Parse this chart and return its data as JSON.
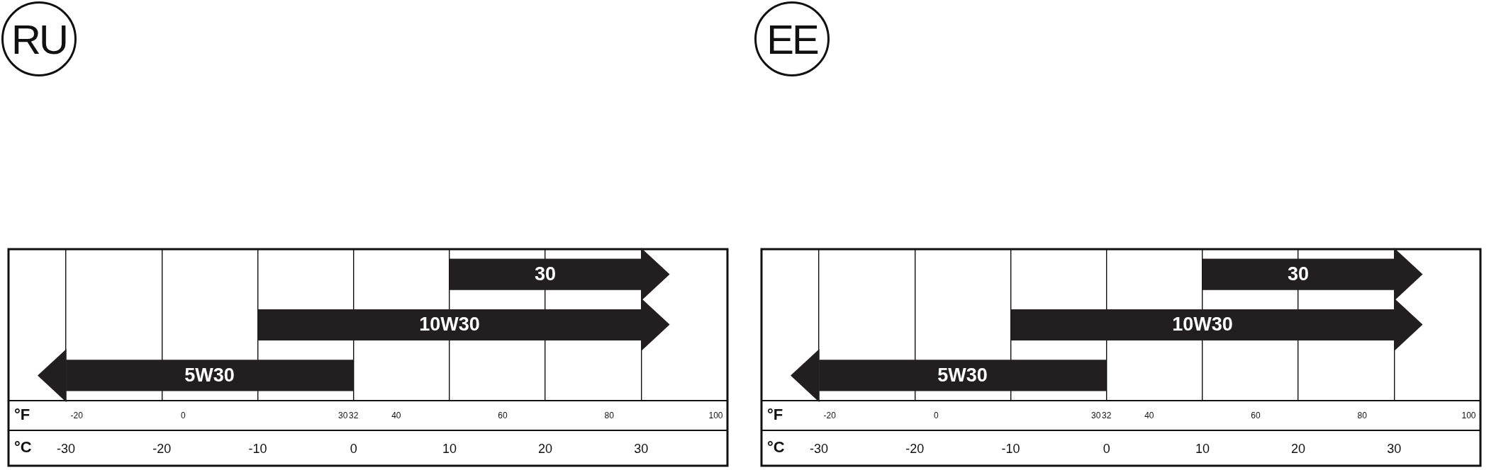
{
  "chart_data": [
    {
      "type": "bar",
      "orientation": "horizontal",
      "title": "RU",
      "categories": [
        "30",
        "10W30",
        "5W30"
      ],
      "series": [
        {
          "color": "#231f20",
          "base": [
            10,
            -10,
            -30
          ],
          "values": [
            20,
            40,
            30
          ]
        }
      ],
      "xlim": [
        -36,
        39
      ],
      "xticks": [
        -30,
        -20,
        -10,
        0,
        10,
        20,
        30
      ],
      "xlabel": "°C",
      "x2lim": [
        -32.8,
        102.2
      ],
      "x2ticks": [
        -20,
        0,
        30,
        32,
        40,
        60,
        80,
        100
      ],
      "x2label": "°F",
      "grid": "x",
      "tick_labels": "x"
    },
    {
      "type": "bar",
      "orientation": "horizontal",
      "title": "EE",
      "categories": [
        "30",
        "10W30",
        "5W30"
      ],
      "series": [
        {
          "color": "#231f20",
          "base": [
            10,
            -10,
            -30
          ],
          "values": [
            20,
            40,
            30
          ]
        }
      ],
      "xlim": [
        -36,
        39
      ],
      "xticks": [
        -30,
        -20,
        -10,
        0,
        10,
        20,
        30
      ],
      "xlabel": "°C",
      "x2lim": [
        -32.8,
        102.2
      ],
      "x2ticks": [
        -20,
        0,
        30,
        32,
        40,
        60,
        80,
        100
      ],
      "x2label": "°F",
      "grid": "x",
      "tick_labels": "x"
    }
  ]
}
